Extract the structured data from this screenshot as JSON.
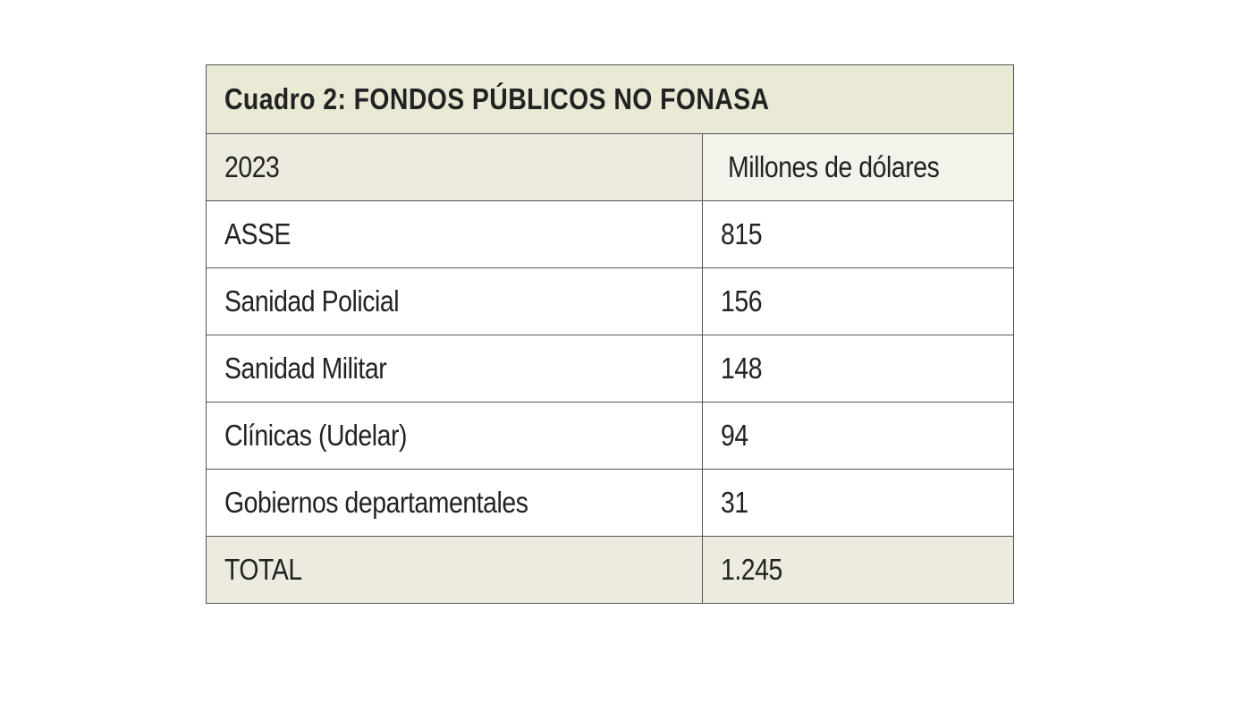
{
  "chart_data": {
    "type": "table",
    "title": "Cuadro 2: FONDOS PÚBLICOS NO FONASA",
    "columns": [
      "2023",
      "Millones de dólares"
    ],
    "rows": [
      {
        "label": "ASSE",
        "value": "815"
      },
      {
        "label": "Sanidad Policial",
        "value": "156"
      },
      {
        "label": "Sanidad Militar",
        "value": "148"
      },
      {
        "label": "Clínicas (Udelar)",
        "value": "94"
      },
      {
        "label": "Gobiernos departamentales",
        "value": "31"
      }
    ],
    "total": {
      "label": "TOTAL",
      "value": "1.245"
    }
  },
  "colors": {
    "title_bg": "#e9e9d5",
    "header_bg": "#edebe0",
    "total_bg": "#edebe0",
    "border": "#555555",
    "text": "#222222"
  }
}
